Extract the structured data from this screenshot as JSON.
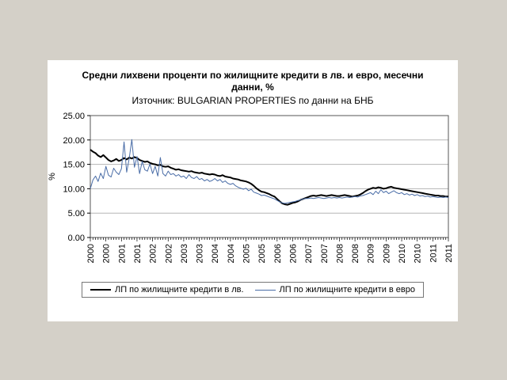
{
  "page": {
    "background": "#d4d0c8",
    "panel_background": "#ffffff"
  },
  "chart": {
    "title_line1": "Средни лихвени проценти по жилищните кредити в лв. и евро, месечни",
    "title_line2": "данни, %",
    "subtitle": "Източник: BULGARIAN PROPERTIES по данни на БНБ"
  },
  "chart_data": {
    "type": "line",
    "title": "Средни лихвени проценти по жилищните кредити в лв. и евро, месечни данни, %",
    "subtitle": "Източник: BULGARIAN PROPERTIES по данни на БНБ",
    "ylabel": "%",
    "ylim": [
      0,
      25
    ],
    "yticks": [
      0,
      5,
      10,
      15,
      20,
      25
    ],
    "ytick_labels": [
      "0.00",
      "5.00",
      "10.00",
      "15.00",
      "20.00",
      "25.00"
    ],
    "grid": true,
    "gridline_color": "#b5b5b5",
    "legend_position": "bottom",
    "x_start": "2000-01",
    "x_frequency": "monthly",
    "x_label_every_months": 6,
    "x_year_labels": [
      "2000",
      "2000",
      "2001",
      "2001",
      "2002",
      "2002",
      "2003",
      "2003",
      "2004",
      "2004",
      "2005",
      "2005",
      "2006",
      "2006",
      "2007",
      "2007",
      "2008",
      "2008",
      "2009",
      "2009",
      "2010",
      "2010",
      "2011",
      "2011"
    ],
    "series": [
      {
        "name": "ЛП по жилищните кредити в лв.",
        "color": "#000000",
        "width": 2,
        "values": [
          18.0,
          17.6,
          17.3,
          16.8,
          16.5,
          16.9,
          16.4,
          15.9,
          15.6,
          15.8,
          16.1,
          15.7,
          15.9,
          16.3,
          16.0,
          16.4,
          16.2,
          16.5,
          16.3,
          15.9,
          15.7,
          15.5,
          15.6,
          15.3,
          15.1,
          15.0,
          14.8,
          14.9,
          14.6,
          14.5,
          14.6,
          14.3,
          14.1,
          13.9,
          14.0,
          13.8,
          13.7,
          13.6,
          13.5,
          13.6,
          13.4,
          13.3,
          13.2,
          13.3,
          13.1,
          13.0,
          12.9,
          13.0,
          12.9,
          12.7,
          12.6,
          12.8,
          12.5,
          12.4,
          12.3,
          12.1,
          12.0,
          11.9,
          11.7,
          11.6,
          11.5,
          11.3,
          11.0,
          10.6,
          10.1,
          9.7,
          9.4,
          9.3,
          9.1,
          8.9,
          8.6,
          8.4,
          7.9,
          7.4,
          7.0,
          6.8,
          6.7,
          6.9,
          7.1,
          7.2,
          7.4,
          7.7,
          7.9,
          8.1,
          8.3,
          8.5,
          8.6,
          8.5,
          8.6,
          8.7,
          8.6,
          8.5,
          8.6,
          8.7,
          8.6,
          8.5,
          8.5,
          8.6,
          8.7,
          8.6,
          8.5,
          8.4,
          8.5,
          8.6,
          8.8,
          9.1,
          9.5,
          9.8,
          10.0,
          10.2,
          10.1,
          10.3,
          10.2,
          10.0,
          10.1,
          10.3,
          10.4,
          10.2,
          10.1,
          10.0,
          9.9,
          9.8,
          9.7,
          9.6,
          9.5,
          9.4,
          9.3,
          9.2,
          9.1,
          9.0,
          8.9,
          8.8,
          8.7,
          8.6,
          8.6,
          8.5,
          8.5,
          8.4,
          8.4
        ]
      },
      {
        "name": "ЛП по жилищните кредити в евро",
        "color": "#4a6da7",
        "width": 1,
        "values": [
          10.0,
          11.8,
          12.6,
          11.5,
          13.2,
          12.1,
          14.6,
          12.8,
          12.4,
          14.2,
          13.4,
          12.9,
          14.1,
          19.6,
          13.4,
          16.2,
          20.1,
          14.4,
          16.6,
          13.1,
          15.6,
          13.9,
          13.6,
          15.1,
          13.1,
          14.6,
          12.6,
          16.4,
          13.1,
          12.6,
          13.6,
          12.9,
          13.1,
          12.6,
          12.9,
          12.4,
          12.6,
          12.1,
          12.9,
          12.3,
          12.1,
          12.5,
          11.9,
          12.1,
          11.6,
          11.9,
          11.5,
          11.7,
          12.1,
          11.6,
          11.9,
          11.3,
          11.6,
          11.1,
          10.9,
          11.1,
          10.6,
          10.3,
          10.1,
          9.9,
          10.1,
          9.6,
          9.9,
          9.3,
          9.1,
          8.9,
          8.6,
          8.7,
          8.5,
          8.3,
          8.1,
          7.9,
          7.6,
          7.3,
          7.1,
          7.0,
          7.1,
          7.2,
          7.3,
          7.4,
          7.6,
          7.7,
          7.9,
          8.0,
          8.0,
          8.1,
          8.0,
          8.1,
          8.2,
          8.1,
          8.0,
          8.1,
          8.2,
          8.1,
          8.2,
          8.1,
          8.2,
          8.1,
          8.2,
          8.3,
          8.2,
          8.3,
          8.4,
          8.3,
          8.5,
          8.6,
          8.8,
          9.0,
          9.2,
          8.8,
          9.5,
          9.0,
          9.8,
          9.2,
          9.5,
          9.0,
          9.3,
          9.6,
          9.2,
          9.0,
          9.2,
          8.8,
          9.0,
          8.7,
          8.9,
          8.6,
          8.8,
          8.5,
          8.6,
          8.4,
          8.5,
          8.3,
          8.4,
          8.3,
          8.2,
          8.3,
          8.2,
          8.3,
          8.2
        ]
      }
    ]
  }
}
